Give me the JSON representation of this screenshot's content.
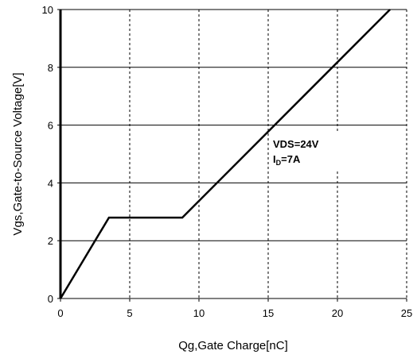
{
  "chart_data": {
    "type": "line",
    "xlabel": "Qg,Gate Charge[nC]",
    "ylabel": "Vgs,Gate-to-Source Voltage[V]",
    "xlim": [
      0,
      25
    ],
    "ylim": [
      0,
      10
    ],
    "x_ticks": [
      "0",
      "5",
      "10",
      "15",
      "20",
      "25"
    ],
    "y_ticks": [
      "0",
      "2",
      "4",
      "6",
      "8",
      "10"
    ],
    "grid": {
      "horizontal": "solid",
      "vertical": "dashed"
    },
    "series": [
      {
        "x": [
          0,
          3.5,
          8.8,
          23.8
        ],
        "y": [
          0,
          2.8,
          2.8,
          10
        ]
      }
    ],
    "annotations": {
      "vds": "VDS=24V",
      "id_main": "I",
      "id_sub": "D",
      "id_value": "=7A"
    },
    "colors": {
      "line": "#000000",
      "grid": "#000000",
      "background": "#ffffff"
    }
  }
}
